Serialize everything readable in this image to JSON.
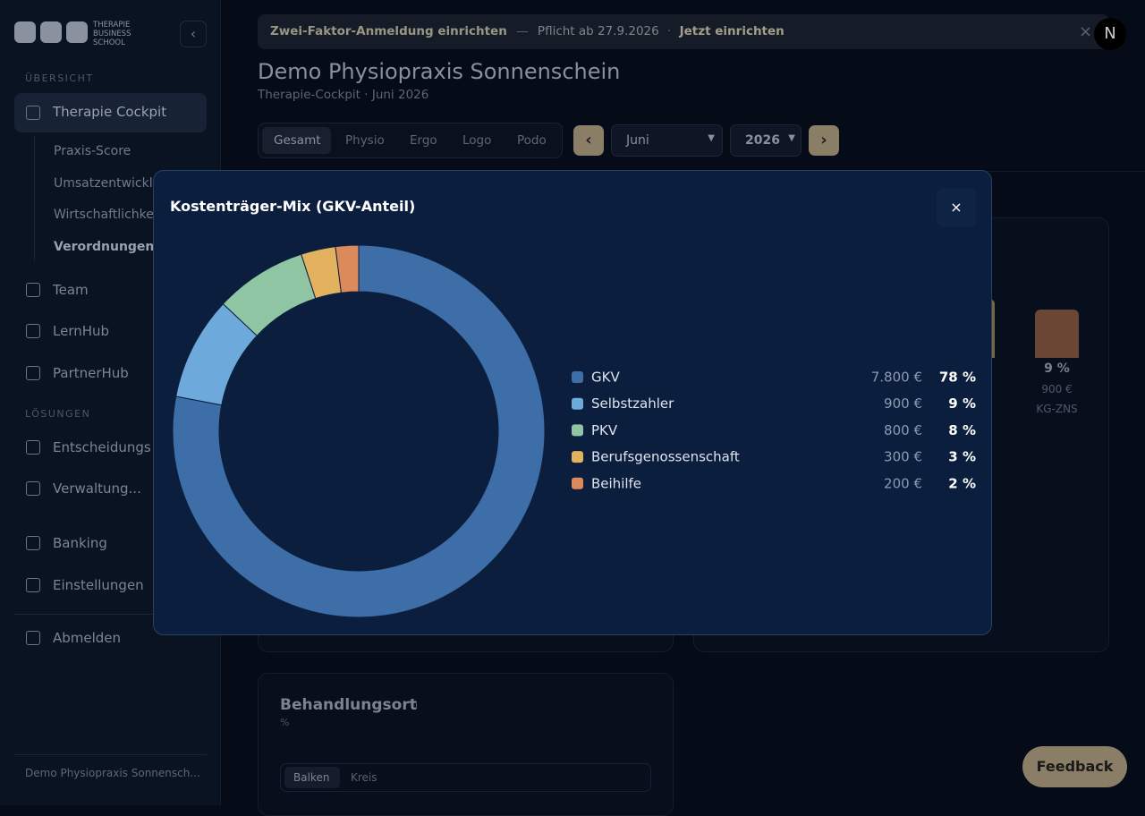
{
  "sidebar": {
    "brand": [
      "THERAPIE",
      "BUSINESS",
      "SCHOOL"
    ],
    "sections": [
      "ÜBERSICHT",
      "LÖSUNGEN"
    ],
    "active": "Therapie Cockpit",
    "subnav": [
      "Praxis-Score",
      "Umsatzentwicklung",
      "Wirtschaftlichkeit",
      "Verordnungen"
    ],
    "nav": [
      "Team",
      "LernHub",
      "PartnerHub"
    ],
    "nav2": [
      "Entscheidungs",
      "Verwaltung...",
      "Banking",
      "Einstellungen"
    ],
    "logout": "Abmelden",
    "footer": "Demo Physiopraxis Sonnensch..."
  },
  "banner": {
    "title": "Zwei-Faktor-Anmeldung einrichten",
    "dash": "—",
    "note": "Pflicht ab 27.9.2026",
    "dot": "·",
    "action": "Jetzt einrichten",
    "close": "×"
  },
  "avatar": "N",
  "header": {
    "title": "Demo Physiopraxis Sonnenschein",
    "subtitle": "Therapie-Cockpit · Juni 2026"
  },
  "tabs": [
    "Gesamt",
    "Physio",
    "Ergo",
    "Logo",
    "Podo"
  ],
  "period": {
    "prev": "‹",
    "month": "Juni",
    "year": "2026",
    "next": "›"
  },
  "background_card": {
    "percent": "9 %",
    "amount": "900 €",
    "label": "KG-ZNS"
  },
  "location_card": {
    "title": "Behandlungsort",
    "info": "i",
    "unit": "%",
    "toggles": [
      "Balken",
      "Kreis"
    ]
  },
  "feedback": "Feedback",
  "modal": {
    "close": "×"
  },
  "chart_data": {
    "type": "donut",
    "title": "Kostenträger-Mix (GKV-Anteil)",
    "categories": [
      "GKV",
      "Selbstzahler",
      "PKV",
      "Berufsgenossenschaft",
      "Beihilfe"
    ],
    "values": [
      78,
      9,
      8,
      3,
      2
    ],
    "value_labels": [
      "78 %",
      "9 %",
      "8 %",
      "3 %",
      "2 %"
    ],
    "amounts": [
      7800,
      900,
      800,
      300,
      200
    ],
    "amount_labels": [
      "7.800 €",
      "900 €",
      "800 €",
      "300 €",
      "200 €"
    ],
    "colors": [
      "#3d6ea8",
      "#6ea9dc",
      "#8fc5a3",
      "#e2b25f",
      "#dc8a5c"
    ]
  }
}
